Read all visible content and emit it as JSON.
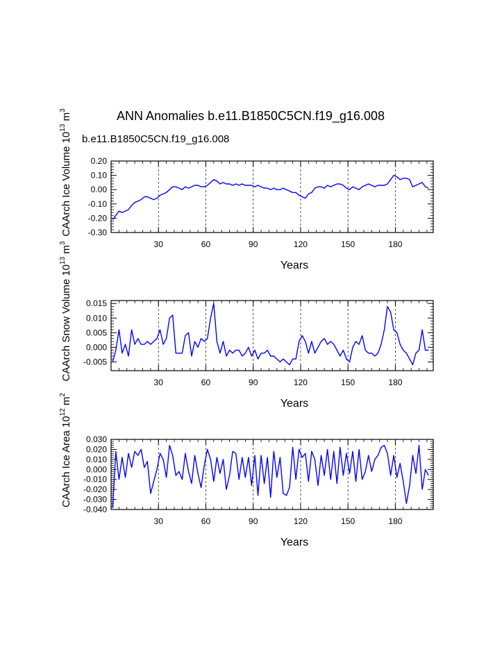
{
  "title": "ANN Anomalies b.e11.B1850C5CN.f19_g16.008",
  "subtitle": "b.e11.B1850C5CN.f19_g16.008",
  "colors": {
    "series": "#0000ff",
    "text": "#000000",
    "subtitle": "#0000ff"
  },
  "chart_data": [
    {
      "type": "line",
      "ylabel_main": "CAArch Ice Volume 10",
      "ylabel_exp": "13",
      "ylabel_unit": "m",
      "ylabel_unit_exp": "3",
      "xlabel": "Years",
      "xlim": [
        0,
        204
      ],
      "ylim": [
        -0.3,
        0.2
      ],
      "xticks": [
        30,
        60,
        90,
        120,
        150,
        180
      ],
      "xticklabels": [
        "30",
        "60",
        "90",
        "120",
        "150",
        "180"
      ],
      "yticks": [
        -0.3,
        -0.2,
        -0.1,
        0.0,
        0.1,
        0.2
      ],
      "yticklabels": [
        "-0.30",
        "-0.20",
        "-0.10",
        "0.00",
        "0.10",
        "0.20"
      ],
      "series": [
        {
          "name": "b.e11.B1850C5CN.f19_g16.008",
          "x": [
            1,
            3,
            5,
            7,
            9,
            11,
            13,
            15,
            17,
            19,
            21,
            23,
            25,
            27,
            29,
            31,
            33,
            35,
            37,
            39,
            41,
            43,
            45,
            47,
            49,
            51,
            53,
            55,
            57,
            59,
            61,
            63,
            65,
            67,
            69,
            71,
            73,
            75,
            77,
            79,
            81,
            83,
            85,
            87,
            89,
            91,
            93,
            95,
            97,
            99,
            101,
            103,
            105,
            107,
            109,
            111,
            113,
            115,
            117,
            119,
            121,
            123,
            125,
            127,
            129,
            131,
            133,
            135,
            137,
            139,
            141,
            143,
            145,
            147,
            149,
            151,
            153,
            155,
            157,
            159,
            161,
            163,
            165,
            167,
            169,
            171,
            173,
            175,
            177,
            179,
            181,
            183,
            185,
            187,
            189,
            191,
            193,
            195,
            197,
            199,
            201
          ],
          "values": [
            -0.21,
            -0.18,
            -0.15,
            -0.16,
            -0.15,
            -0.14,
            -0.11,
            -0.09,
            -0.08,
            -0.07,
            -0.05,
            -0.05,
            -0.06,
            -0.07,
            -0.06,
            -0.04,
            -0.03,
            -0.02,
            0.0,
            0.02,
            0.02,
            0.01,
            0.0,
            0.02,
            0.01,
            0.02,
            0.03,
            0.03,
            0.02,
            0.02,
            0.03,
            0.05,
            0.07,
            0.06,
            0.04,
            0.05,
            0.04,
            0.04,
            0.03,
            0.04,
            0.03,
            0.04,
            0.03,
            0.03,
            0.03,
            0.02,
            0.03,
            0.02,
            0.01,
            0.01,
            0.0,
            0.01,
            0.0,
            0.0,
            0.01,
            0.0,
            -0.01,
            -0.02,
            -0.02,
            -0.04,
            -0.05,
            -0.06,
            -0.03,
            -0.02,
            0.01,
            0.02,
            0.02,
            0.01,
            0.03,
            0.02,
            0.03,
            0.04,
            0.04,
            0.03,
            0.01,
            0.0,
            0.02,
            0.01,
            0.0,
            0.02,
            0.03,
            0.04,
            0.03,
            0.02,
            0.03,
            0.03,
            0.03,
            0.04,
            0.07,
            0.1,
            0.09,
            0.07,
            0.08,
            0.08,
            0.07,
            0.02,
            0.03,
            0.04,
            0.05,
            0.02,
            0.01
          ]
        }
      ]
    },
    {
      "type": "line",
      "ylabel_main": "CAArch Snow Volume 10",
      "ylabel_exp": "13",
      "ylabel_unit": "m",
      "ylabel_unit_exp": "3",
      "xlabel": "Years",
      "xlim": [
        0,
        204
      ],
      "ylim": [
        -0.008,
        0.016
      ],
      "xticks": [
        30,
        60,
        90,
        120,
        150,
        180
      ],
      "xticklabels": [
        "30",
        "60",
        "90",
        "120",
        "150",
        "180"
      ],
      "yticks": [
        -0.005,
        0.0,
        0.005,
        0.01,
        0.015
      ],
      "yticklabels": [
        "-0.005",
        "0.000",
        "0.005",
        "0.010",
        "0.015"
      ],
      "series": [
        {
          "name": "b.e11.B1850C5CN.f19_g16.008",
          "x": [
            1,
            3,
            5,
            7,
            9,
            11,
            13,
            15,
            17,
            19,
            21,
            23,
            25,
            27,
            29,
            31,
            33,
            35,
            37,
            39,
            41,
            43,
            45,
            47,
            49,
            51,
            53,
            55,
            57,
            59,
            61,
            63,
            65,
            67,
            69,
            71,
            73,
            75,
            77,
            79,
            81,
            83,
            85,
            87,
            89,
            91,
            93,
            95,
            97,
            99,
            101,
            103,
            105,
            107,
            109,
            111,
            113,
            115,
            117,
            119,
            121,
            123,
            125,
            127,
            129,
            131,
            133,
            135,
            137,
            139,
            141,
            143,
            145,
            147,
            149,
            151,
            153,
            155,
            157,
            159,
            161,
            163,
            165,
            167,
            169,
            171,
            173,
            175,
            177,
            179,
            181,
            183,
            185,
            187,
            189,
            191,
            193,
            195,
            197,
            199,
            201
          ],
          "values": [
            -0.005,
            -0.001,
            0.006,
            -0.002,
            0.001,
            -0.003,
            0.006,
            0.001,
            0.003,
            0.001,
            0.001,
            0.002,
            0.001,
            0.002,
            0.003,
            0.006,
            0.001,
            0.003,
            0.01,
            0.011,
            -0.002,
            -0.002,
            -0.002,
            0.004,
            0.005,
            -0.003,
            0.002,
            0.0,
            0.003,
            0.002,
            0.003,
            0.01,
            0.015,
            0.002,
            -0.002,
            0.002,
            -0.003,
            -0.001,
            -0.002,
            -0.001,
            -0.001,
            -0.003,
            -0.002,
            0.0,
            -0.003,
            -0.001,
            -0.004,
            -0.002,
            -0.002,
            -0.001,
            -0.003,
            -0.003,
            -0.004,
            -0.005,
            -0.004,
            -0.005,
            -0.006,
            -0.004,
            -0.004,
            0.002,
            0.004,
            0.002,
            -0.002,
            0.002,
            -0.002,
            0.0,
            0.002,
            0.003,
            0.001,
            0.002,
            0.001,
            -0.001,
            -0.003,
            -0.001,
            -0.004,
            -0.005,
            0.0,
            0.002,
            0.001,
            0.004,
            -0.001,
            -0.002,
            -0.002,
            -0.003,
            -0.002,
            0.001,
            0.006,
            0.014,
            0.012,
            0.006,
            0.005,
            0.001,
            -0.001,
            -0.002,
            -0.004,
            -0.006,
            -0.002,
            -0.001,
            0.006,
            -0.001,
            -0.001
          ]
        }
      ]
    },
    {
      "type": "line",
      "ylabel_main": "CAArch Ice Area 10",
      "ylabel_exp": "12",
      "ylabel_unit": "m",
      "ylabel_unit_exp": "2",
      "xlabel": "Years",
      "xlim": [
        0,
        204
      ],
      "ylim": [
        -0.04,
        0.03
      ],
      "xticks": [
        30,
        60,
        90,
        120,
        150,
        180
      ],
      "xticklabels": [
        "30",
        "60",
        "90",
        "120",
        "150",
        "180"
      ],
      "yticks": [
        -0.04,
        -0.03,
        -0.02,
        -0.01,
        0.0,
        0.01,
        0.02,
        0.03
      ],
      "yticklabels": [
        "-0.040",
        "-0.030",
        "-0.020",
        "-0.010",
        "0.000",
        "0.010",
        "0.020",
        "0.030"
      ],
      "series": [
        {
          "name": "b.e11.B1850C5CN.f19_g16.008",
          "x": [
            1,
            3,
            5,
            7,
            9,
            11,
            13,
            15,
            17,
            19,
            21,
            23,
            25,
            27,
            29,
            31,
            33,
            35,
            37,
            39,
            41,
            43,
            45,
            47,
            49,
            51,
            53,
            55,
            57,
            59,
            61,
            63,
            65,
            67,
            69,
            71,
            73,
            75,
            77,
            79,
            81,
            83,
            85,
            87,
            89,
            91,
            93,
            95,
            97,
            99,
            101,
            103,
            105,
            107,
            109,
            111,
            113,
            115,
            117,
            119,
            121,
            123,
            125,
            127,
            129,
            131,
            133,
            135,
            137,
            139,
            141,
            143,
            145,
            147,
            149,
            151,
            153,
            155,
            157,
            159,
            161,
            163,
            165,
            167,
            169,
            171,
            173,
            175,
            177,
            179,
            181,
            183,
            185,
            187,
            189,
            191,
            193,
            195,
            197,
            199,
            201
          ],
          "values": [
            -0.038,
            0.018,
            -0.01,
            0.012,
            -0.008,
            0.016,
            0.002,
            0.018,
            0.014,
            0.02,
            0.002,
            0.008,
            -0.024,
            -0.012,
            0.0,
            0.016,
            0.01,
            -0.008,
            0.024,
            0.014,
            -0.006,
            -0.002,
            -0.01,
            0.016,
            -0.002,
            -0.014,
            0.014,
            -0.004,
            -0.018,
            0.004,
            0.02,
            0.01,
            -0.012,
            0.012,
            -0.004,
            0.01,
            -0.02,
            -0.006,
            0.018,
            0.016,
            -0.01,
            0.012,
            -0.008,
            0.012,
            -0.016,
            0.014,
            -0.026,
            0.014,
            -0.014,
            0.012,
            -0.028,
            0.018,
            -0.008,
            0.012,
            -0.024,
            -0.026,
            -0.018,
            0.022,
            -0.01,
            0.02,
            0.012,
            0.016,
            -0.012,
            0.018,
            0.01,
            -0.016,
            0.014,
            -0.006,
            0.02,
            -0.01,
            0.018,
            -0.014,
            0.022,
            -0.006,
            0.016,
            -0.004,
            0.018,
            -0.012,
            0.02,
            -0.01,
            -0.002,
            0.014,
            -0.002,
            0.01,
            0.014,
            0.022,
            0.024,
            0.016,
            -0.006,
            0.014,
            -0.008,
            0.006,
            -0.012,
            -0.034,
            -0.016,
            0.014,
            -0.004,
            0.024,
            -0.02,
            0.0,
            -0.006
          ]
        }
      ]
    }
  ]
}
